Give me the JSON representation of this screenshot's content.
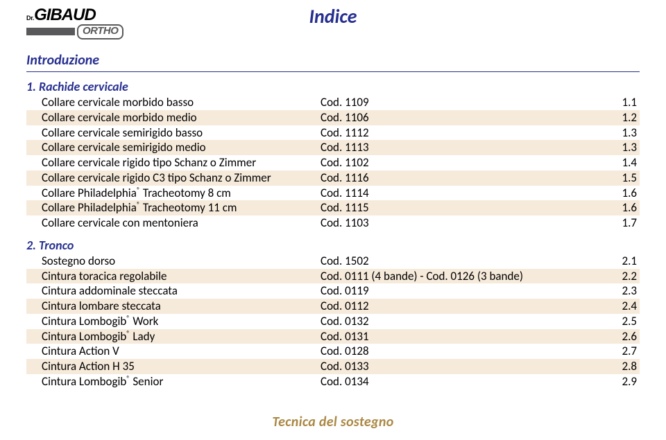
{
  "logo": {
    "prefix": "Dr.",
    "brand": "GIBAUD",
    "sub": "ORTHO"
  },
  "page_title": "Indice",
  "intro": "Introduzione",
  "footer": "Tecnica del sostegno",
  "colors": {
    "title": "#262f90",
    "rule": "#262f90",
    "shade": "#f6eadb",
    "footer": "#aa8844",
    "text": "#000000"
  },
  "sections": [
    {
      "head": "1. Rachide cervicale",
      "rows": [
        {
          "name": "Collare cervicale morbido basso",
          "code": "Cod. 1109",
          "page": "1.1",
          "shade": false
        },
        {
          "name": "Collare cervicale morbido medio",
          "code": "Cod. 1106",
          "page": "1.2",
          "shade": true
        },
        {
          "name": "Collare cervicale semirigido basso",
          "code": "Cod. 1112",
          "page": "1.3",
          "shade": false
        },
        {
          "name": "Collare cervicale semirigido medio",
          "code": "Cod. 1113",
          "page": "1.3",
          "shade": true
        },
        {
          "name": "Collare cervicale rigido tipo Schanz o Zimmer",
          "code": "Cod. 1102",
          "page": "1.4",
          "shade": false
        },
        {
          "name": "Collare cervicale rigido C3 tipo Schanz o Zimmer",
          "code": "Cod. 1116",
          "page": "1.5",
          "shade": true
        },
        {
          "name": "Collare Philadelphia® Tracheotomy 8 cm",
          "code": "Cod. 1114",
          "page": "1.6",
          "shade": false
        },
        {
          "name": "Collare Philadelphia® Tracheotomy 11 cm",
          "code": "Cod. 1115",
          "page": "1.6",
          "shade": true
        },
        {
          "name": "Collare cervicale con mentoniera",
          "code": "Cod. 1103",
          "page": "1.7",
          "shade": false
        }
      ]
    },
    {
      "head": "2. Tronco",
      "rows": [
        {
          "name": "Sostegno dorso",
          "code": "Cod. 1502",
          "page": "2.1",
          "shade": false
        },
        {
          "name": "Cintura toracica regolabile",
          "code": "Cod. 0111 (4 bande) - Cod. 0126 (3 bande)",
          "page": "2.2",
          "shade": true
        },
        {
          "name": "Cintura addominale steccata",
          "code": "Cod. 0119",
          "page": "2.3",
          "shade": false
        },
        {
          "name": "Cintura lombare steccata",
          "code": "Cod. 0112",
          "page": "2.4",
          "shade": true
        },
        {
          "name": "Cintura Lombogib® Work",
          "code": "Cod. 0132",
          "page": "2.5",
          "shade": false
        },
        {
          "name": "Cintura Lombogib® Lady",
          "code": "Cod. 0131",
          "page": "2.6",
          "shade": true
        },
        {
          "name": "Cintura Action V",
          "code": "Cod. 0128",
          "page": "2.7",
          "shade": false
        },
        {
          "name": "Cintura Action H 35",
          "code": "Cod. 0133",
          "page": "2.8",
          "shade": true
        },
        {
          "name": "Cintura Lombogib® Senior",
          "code": "Cod. 0134",
          "page": "2.9",
          "shade": false
        }
      ]
    }
  ]
}
